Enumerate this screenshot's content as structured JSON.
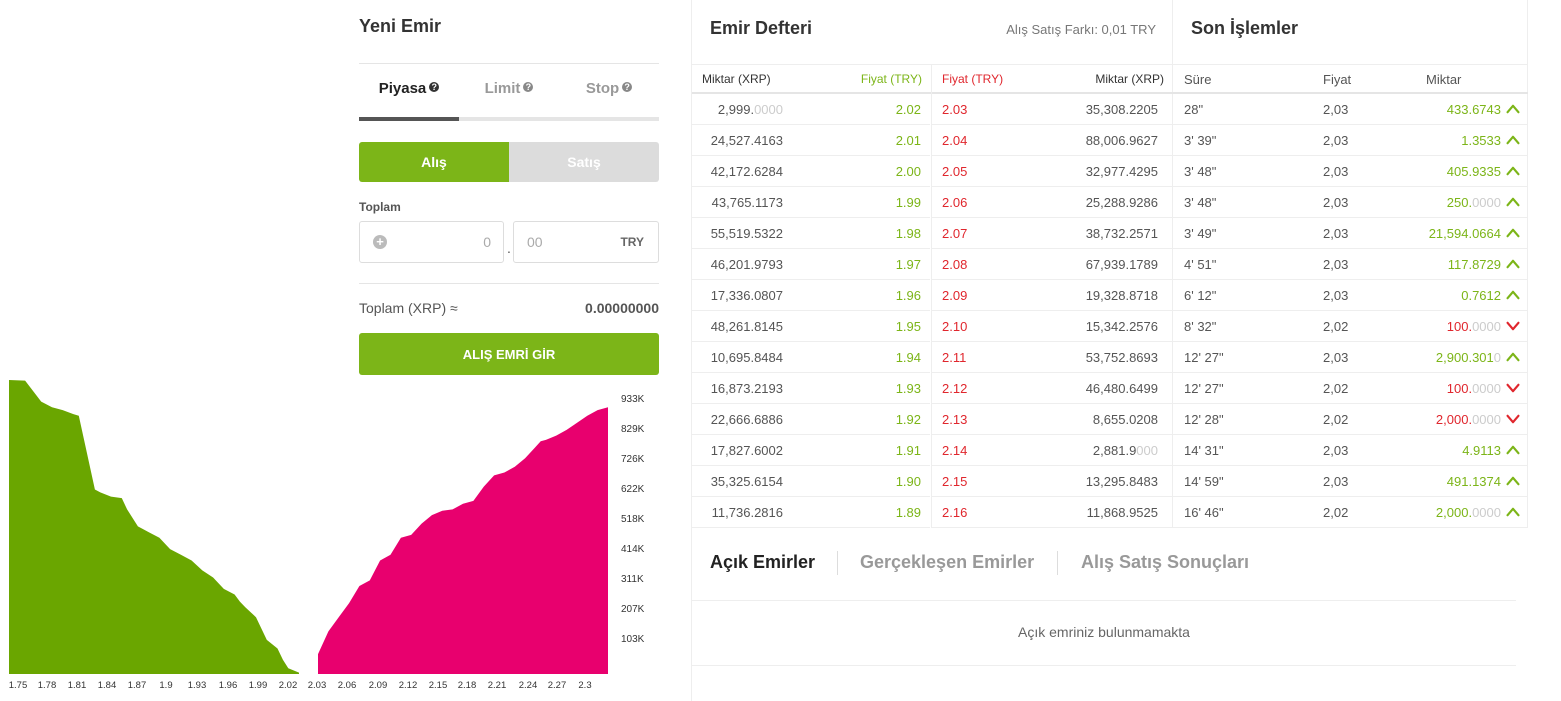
{
  "new_order": {
    "title": "Yeni Emir",
    "tabs": [
      {
        "label": "Piyasa",
        "help": "?"
      },
      {
        "label": "Limit",
        "help": "?"
      },
      {
        "label": "Stop",
        "help": "?"
      }
    ],
    "buy_label": "Alış",
    "sell_label": "Satış",
    "total_label": "Toplam",
    "total_int_value": "0",
    "total_dec_placeholder": "00",
    "total_separator": ".",
    "plus_glyph": "+",
    "currency": "TRY",
    "xrp_total_label": "Toplam (XRP) ≈",
    "xrp_total_value": "0.00000000",
    "submit_label": "ALIŞ EMRİ GİR"
  },
  "chart_data": {
    "type": "area",
    "title": "",
    "xlabel": "",
    "ylabel": "",
    "x_ticks": [
      "1.75",
      "1.78",
      "1.81",
      "1.84",
      "1.87",
      "1.9",
      "1.93",
      "1.96",
      "1.99",
      "2.02",
      "2.03",
      "2.06",
      "2.09",
      "2.12",
      "2.15",
      "2.18",
      "2.21",
      "2.24",
      "2.27",
      "2.3"
    ],
    "y_ticks": [
      "933K",
      "829K",
      "726K",
      "622K",
      "518K",
      "414K",
      "311K",
      "207K",
      "103K"
    ],
    "ylim": [
      0,
      1036000
    ],
    "series": [
      {
        "name": "bids",
        "color": "#6aa600",
        "x": [
          1.75,
          1.765,
          1.78,
          1.79,
          1.8,
          1.81,
          1.815,
          1.83,
          1.835,
          1.845,
          1.855,
          1.86,
          1.87,
          1.875,
          1.88,
          1.89,
          1.9,
          1.91,
          1.92,
          1.93,
          1.94,
          1.95,
          1.96,
          1.965,
          1.97,
          1.98,
          1.99,
          2.0,
          2.005,
          2.01,
          2.02
        ],
        "values": [
          1036000,
          1034000,
          960000,
          940000,
          930000,
          916000,
          910000,
          650000,
          640000,
          625000,
          620000,
          580000,
          520000,
          510000,
          500000,
          480000,
          440000,
          420000,
          400000,
          365000,
          340000,
          300000,
          280000,
          255000,
          235000,
          200000,
          120000,
          90000,
          50000,
          20000,
          5000
        ]
      },
      {
        "name": "asks",
        "color": "#e8006e",
        "x": [
          2.03,
          2.04,
          2.05,
          2.06,
          2.07,
          2.08,
          2.09,
          2.1,
          2.11,
          2.12,
          2.13,
          2.14,
          2.15,
          2.16,
          2.17,
          2.18,
          2.19,
          2.2,
          2.21,
          2.22,
          2.23,
          2.24,
          2.245,
          2.25,
          2.26,
          2.27,
          2.28,
          2.29,
          2.3,
          2.31
        ],
        "values": [
          70000,
          150000,
          200000,
          250000,
          310000,
          330000,
          400000,
          420000,
          480000,
          490000,
          530000,
          560000,
          575000,
          580000,
          600000,
          610000,
          660000,
          700000,
          710000,
          730000,
          760000,
          800000,
          820000,
          825000,
          840000,
          860000,
          885000,
          910000,
          930000,
          940000
        ]
      }
    ]
  },
  "order_book": {
    "title": "Emir Defteri",
    "spread_label": "Alış Satış Farkı: 0,01 TRY",
    "headers": {
      "bid_amount": "Miktar (XRP)",
      "bid_price": "Fiyat (TRY)",
      "ask_price": "Fiyat (TRY)",
      "ask_amount": "Miktar (XRP)"
    },
    "rows": [
      {
        "bid_amt": "2,999.",
        "bid_amt_dim": "0000",
        "bid_price": "2.02",
        "ask_price": "2.03",
        "ask_amt": "35,308.2205",
        "ask_amt_dim": ""
      },
      {
        "bid_amt": "24,527.4163",
        "bid_amt_dim": "",
        "bid_price": "2.01",
        "ask_price": "2.04",
        "ask_amt": "88,006.9627",
        "ask_amt_dim": ""
      },
      {
        "bid_amt": "42,172.6284",
        "bid_amt_dim": "",
        "bid_price": "2.00",
        "ask_price": "2.05",
        "ask_amt": "32,977.4295",
        "ask_amt_dim": ""
      },
      {
        "bid_amt": "43,765.1173",
        "bid_amt_dim": "",
        "bid_price": "1.99",
        "ask_price": "2.06",
        "ask_amt": "25,288.9286",
        "ask_amt_dim": ""
      },
      {
        "bid_amt": "55,519.5322",
        "bid_amt_dim": "",
        "bid_price": "1.98",
        "ask_price": "2.07",
        "ask_amt": "38,732.2571",
        "ask_amt_dim": ""
      },
      {
        "bid_amt": "46,201.9793",
        "bid_amt_dim": "",
        "bid_price": "1.97",
        "ask_price": "2.08",
        "ask_amt": "67,939.1789",
        "ask_amt_dim": ""
      },
      {
        "bid_amt": "17,336.0807",
        "bid_amt_dim": "",
        "bid_price": "1.96",
        "ask_price": "2.09",
        "ask_amt": "19,328.8718",
        "ask_amt_dim": ""
      },
      {
        "bid_amt": "48,261.8145",
        "bid_amt_dim": "",
        "bid_price": "1.95",
        "ask_price": "2.10",
        "ask_amt": "15,342.2576",
        "ask_amt_dim": ""
      },
      {
        "bid_amt": "10,695.8484",
        "bid_amt_dim": "",
        "bid_price": "1.94",
        "ask_price": "2.11",
        "ask_amt": "53,752.8693",
        "ask_amt_dim": ""
      },
      {
        "bid_amt": "16,873.2193",
        "bid_amt_dim": "",
        "bid_price": "1.93",
        "ask_price": "2.12",
        "ask_amt": "46,480.6499",
        "ask_amt_dim": ""
      },
      {
        "bid_amt": "22,666.6886",
        "bid_amt_dim": "",
        "bid_price": "1.92",
        "ask_price": "2.13",
        "ask_amt": "8,655.0208",
        "ask_amt_dim": ""
      },
      {
        "bid_amt": "17,827.6002",
        "bid_amt_dim": "",
        "bid_price": "1.91",
        "ask_price": "2.14",
        "ask_amt": "2,881.9",
        "ask_amt_dim": "000"
      },
      {
        "bid_amt": "35,325.6154",
        "bid_amt_dim": "",
        "bid_price": "1.90",
        "ask_price": "2.15",
        "ask_amt": "13,295.8483",
        "ask_amt_dim": ""
      },
      {
        "bid_amt": "11,736.2816",
        "bid_amt_dim": "",
        "bid_price": "1.89",
        "ask_price": "2.16",
        "ask_amt": "11,868.9525",
        "ask_amt_dim": ""
      }
    ]
  },
  "recent_trades": {
    "title": "Son İşlemler",
    "headers": {
      "time": "Süre",
      "price": "Fiyat",
      "amount": "Miktar"
    },
    "colors": {
      "up": "#7cb518",
      "down": "#e0262d"
    },
    "rows": [
      {
        "time": "28\"",
        "price": "2,03",
        "amt": "433.6743",
        "amt_dim": "",
        "dir": "up"
      },
      {
        "time": "3' 39\"",
        "price": "2,03",
        "amt": "1.3533",
        "amt_dim": "",
        "dir": "up"
      },
      {
        "time": "3' 48\"",
        "price": "2,03",
        "amt": "405.9335",
        "amt_dim": "",
        "dir": "up"
      },
      {
        "time": "3' 48\"",
        "price": "2,03",
        "amt": "250.",
        "amt_dim": "0000",
        "dir": "up"
      },
      {
        "time": "3' 49\"",
        "price": "2,03",
        "amt": "21,594.0664",
        "amt_dim": "",
        "dir": "up"
      },
      {
        "time": "4' 51\"",
        "price": "2,03",
        "amt": "117.8729",
        "amt_dim": "",
        "dir": "up"
      },
      {
        "time": "6' 12\"",
        "price": "2,03",
        "amt": "0.7612",
        "amt_dim": "",
        "dir": "up"
      },
      {
        "time": "8' 32\"",
        "price": "2,02",
        "amt": "100.",
        "amt_dim": "0000",
        "dir": "down"
      },
      {
        "time": "12' 27\"",
        "price": "2,03",
        "amt": "2,900.301",
        "amt_dim": "0",
        "dir": "up"
      },
      {
        "time": "12' 27\"",
        "price": "2,02",
        "amt": "100.",
        "amt_dim": "0000",
        "dir": "down"
      },
      {
        "time": "12' 28\"",
        "price": "2,02",
        "amt": "2,000.",
        "amt_dim": "0000",
        "dir": "down"
      },
      {
        "time": "14' 31\"",
        "price": "2,03",
        "amt": "4.9113",
        "amt_dim": "",
        "dir": "up"
      },
      {
        "time": "14' 59\"",
        "price": "2,03",
        "amt": "491.1374",
        "amt_dim": "",
        "dir": "up"
      },
      {
        "time": "16' 46\"",
        "price": "2,02",
        "amt": "2,000.",
        "amt_dim": "0000",
        "dir": "up"
      }
    ]
  },
  "bottom_tabs": {
    "tabs": [
      "Açık Emirler",
      "Gerçekleşen Emirler",
      "Alış Satış Sonuçları"
    ],
    "empty_message": "Açık emriniz bulunmamakta"
  }
}
